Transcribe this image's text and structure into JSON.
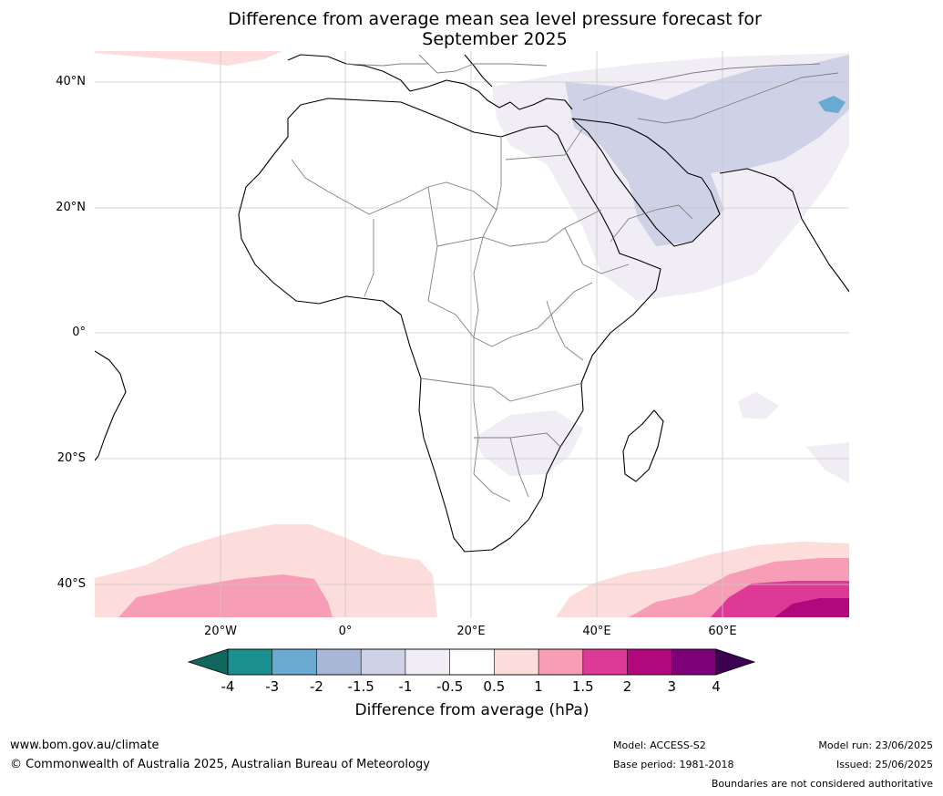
{
  "title_line1": "Difference from average mean sea level pressure forecast for",
  "title_line2": "September 2025",
  "lat_labels": [
    "40°N",
    "20°N",
    "0°",
    "20°S",
    "40°S"
  ],
  "lon_labels": [
    "20°W",
    "0°",
    "20°E",
    "40°E",
    "60°E"
  ],
  "colorbar": {
    "title": "Difference from average (hPa)",
    "ticks": [
      "-4",
      "-3",
      "-2",
      "-1.5",
      "-1",
      "-0.5",
      "0.5",
      "1",
      "1.5",
      "2",
      "3",
      "4"
    ],
    "colors": [
      "#1b8e8e",
      "#6aa9d0",
      "#a9b7d6",
      "#cfd1e6",
      "#f1edf5",
      "#ffffff",
      "#fddcdc",
      "#f79db6",
      "#dd3a97",
      "#b3077c",
      "#7d0078"
    ],
    "under_color": "#11665e",
    "over_color": "#3d0052"
  },
  "footer": {
    "url": "www.bom.gov.au/climate",
    "copyright": "© Commonwealth of Australia 2025, Australian Bureau of Meteorology",
    "model": "Model: ACCESS-S2",
    "base_period": "Base period: 1981-2018",
    "model_run": "Model run: 23/06/2025",
    "issued": "Issued: 25/06/2025",
    "disclaimer": "Boundaries are not considered authoritative"
  }
}
